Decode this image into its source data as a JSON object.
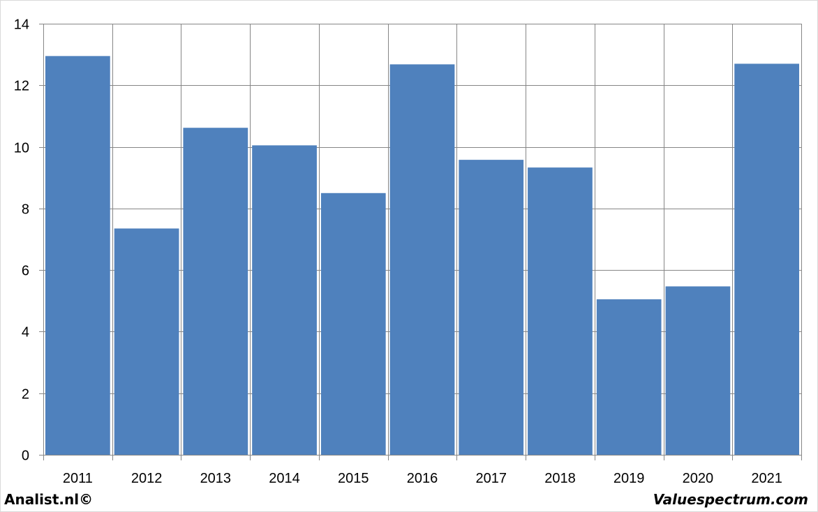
{
  "chart_data": {
    "type": "bar",
    "title": "",
    "xlabel": "",
    "ylabel": "",
    "categories": [
      "2011",
      "2012",
      "2013",
      "2014",
      "2015",
      "2016",
      "2017",
      "2018",
      "2019",
      "2020",
      "2021"
    ],
    "values": [
      12.95,
      7.35,
      10.62,
      10.05,
      8.5,
      12.68,
      9.58,
      9.33,
      5.05,
      5.47,
      12.7
    ],
    "ylim": [
      0,
      14
    ],
    "yticks": [
      "0",
      "2",
      "4",
      "6",
      "8",
      "10",
      "12",
      "14"
    ],
    "grid": true,
    "bar_color": "#4f81bd",
    "grid_color": "#868686"
  },
  "footer": {
    "left_text": "Analist.nl©",
    "right_text": "Valuespectrum.com"
  }
}
